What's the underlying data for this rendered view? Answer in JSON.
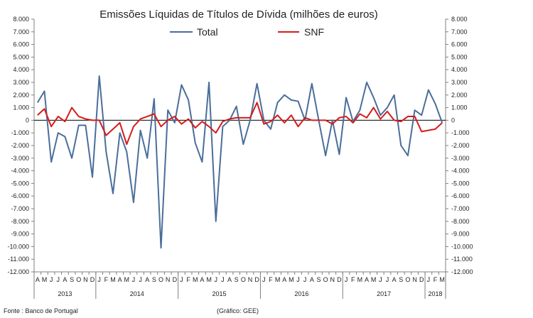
{
  "chart_data": {
    "type": "line",
    "title": "Emissões Líquidas de Títulos de Dívida (milhões de euros)",
    "legend": [
      "Total",
      "SNF"
    ],
    "legend_position": "top",
    "colors": {
      "Total": "#4a6e9a",
      "SNF": "#d41c1c",
      "axis": "#7f7f7f",
      "zero": "#000000"
    },
    "ylim": [
      -12000,
      8000
    ],
    "ytick_step": 1000,
    "yticks_left": [
      "8.000",
      "7.000",
      "6.000",
      "5.000",
      "4.000",
      "3.000",
      "2.000",
      "1.000",
      "0",
      "-1.000",
      "-2.000",
      "-3.000",
      "-4.000",
      "-5.000",
      "-6.000",
      "-7.000",
      "-8.000",
      "-9.000",
      "-10.000",
      "-11.000",
      "-12.000"
    ],
    "yticks_right": [
      "8.000",
      "7.000",
      "6.000",
      "5.000",
      "4.000",
      "3.000",
      "2.000",
      "1.000",
      "0",
      "-1.000",
      "-2.000",
      "-3.000",
      "-4.000",
      "-5.000",
      "-6.000",
      "-7.000",
      "-8.000",
      "-9.000",
      "-10.000",
      "-11.000",
      "-12.000"
    ],
    "categories": [
      "A",
      "M",
      "J",
      "J",
      "A",
      "S",
      "O",
      "N",
      "D",
      "J",
      "F",
      "M",
      "A",
      "M",
      "J",
      "J",
      "A",
      "S",
      "O",
      "N",
      "D",
      "J",
      "F",
      "M",
      "A",
      "M",
      "J",
      "J",
      "A",
      "S",
      "O",
      "N",
      "D",
      "J",
      "F",
      "M",
      "A",
      "M",
      "J",
      "J",
      "A",
      "S",
      "O",
      "N",
      "D",
      "J",
      "F",
      "M",
      "A",
      "M",
      "J",
      "J",
      "A",
      "S",
      "O",
      "N",
      "D",
      "J",
      "F",
      "M"
    ],
    "years": [
      {
        "label": "2013",
        "start": 0,
        "end": 9
      },
      {
        "label": "2014",
        "start": 9,
        "end": 21
      },
      {
        "label": "2015",
        "start": 21,
        "end": 33
      },
      {
        "label": "2016",
        "start": 33,
        "end": 45
      },
      {
        "label": "2017",
        "start": 45,
        "end": 57
      },
      {
        "label": "2018",
        "start": 57,
        "end": 60
      }
    ],
    "series": [
      {
        "name": "Total",
        "values": [
          1400,
          2300,
          -3300,
          -1000,
          -1300,
          -3000,
          -400,
          -400,
          -4500,
          3500,
          -2500,
          -5800,
          -1000,
          -2500,
          -6500,
          -800,
          -3000,
          1700,
          -10100,
          800,
          -200,
          2800,
          1600,
          -1800,
          -3300,
          3000,
          -8000,
          -500,
          0,
          1100,
          -1900,
          0,
          2900,
          0,
          -700,
          1400,
          2000,
          1600,
          1500,
          0,
          2900,
          0,
          -2800,
          0,
          -2700,
          1800,
          -100,
          800,
          3000,
          1800,
          400,
          1000,
          2000,
          -2000,
          -2800,
          800,
          400,
          2400,
          1300,
          -200
        ]
      },
      {
        "name": "SNF",
        "values": [
          400,
          900,
          -500,
          300,
          -100,
          1000,
          300,
          100,
          0,
          0,
          -1200,
          -700,
          -200,
          -1900,
          -500,
          100,
          300,
          500,
          -500,
          0,
          300,
          -300,
          100,
          -600,
          -100,
          -500,
          -1000,
          -100,
          100,
          200,
          200,
          200,
          1400,
          -300,
          -100,
          400,
          -200,
          400,
          -500,
          200,
          0,
          0,
          0,
          -300,
          200,
          300,
          -200,
          500,
          200,
          1000,
          100,
          700,
          0,
          -100,
          300,
          300,
          -900,
          -800,
          -700,
          -200
        ]
      }
    ],
    "source_note": "Fonte : Banco de Portugal",
    "credit_note": "(Gráfico: GEE)"
  }
}
